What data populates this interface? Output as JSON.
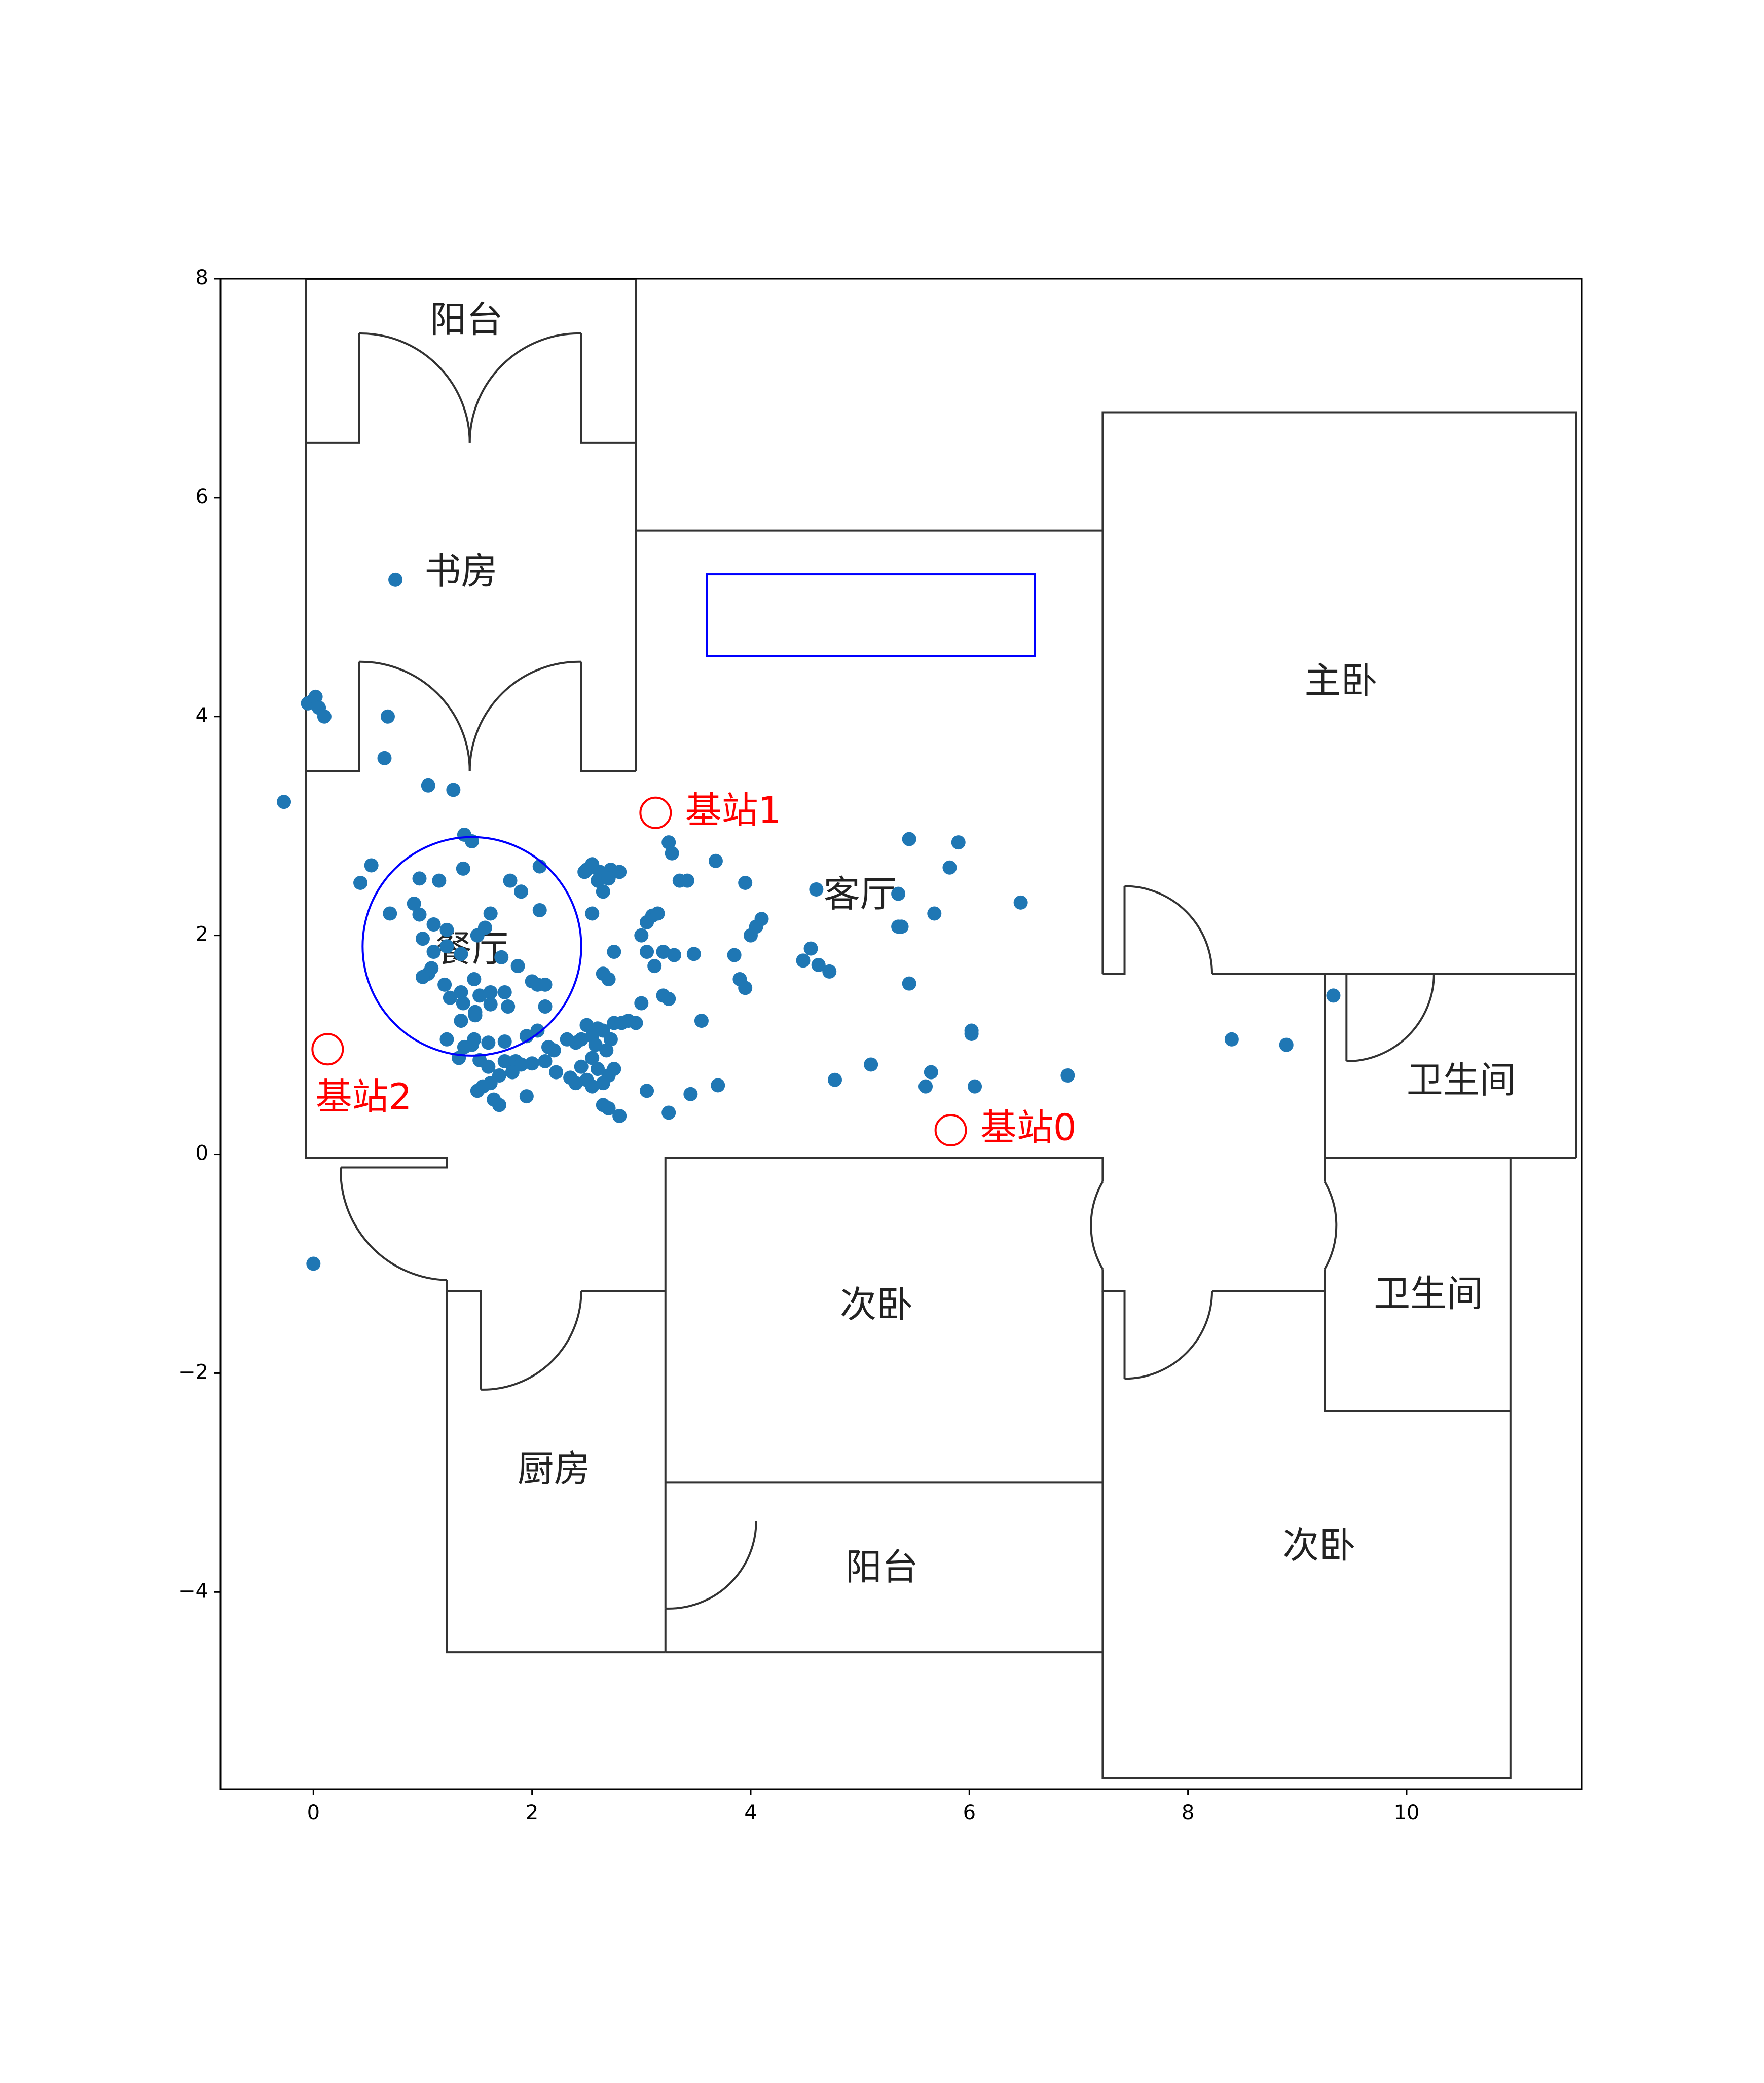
{
  "chart_data": {
    "type": "scatter",
    "title": "",
    "xlabel": "",
    "ylabel": "",
    "xlim": [
      -0.85,
      11.6
    ],
    "ylim": [
      -5.8,
      8.0
    ],
    "xticks": [
      0,
      2,
      4,
      6,
      8,
      10
    ],
    "yticks": [
      -4,
      -2,
      0,
      2,
      4,
      6,
      8
    ],
    "xtick_labels": [
      "0",
      "2",
      "4",
      "6",
      "8",
      "10"
    ],
    "ytick_labels": [
      "−4",
      "−2",
      "0",
      "2",
      "4",
      "6",
      "8"
    ],
    "grid": false,
    "colors": {
      "points": "#1f77b4",
      "walls": "#333333",
      "circle": "#0000ff",
      "stations": "#ff0000"
    },
    "rooms": [
      {
        "label": "阳台",
        "x": 1.4,
        "y": 7.6
      },
      {
        "label": "书房",
        "x": 1.35,
        "y": 5.3
      },
      {
        "label": "主卧",
        "x": 9.4,
        "y": 4.3
      },
      {
        "label": "客厅",
        "x": 5.0,
        "y": 2.35
      },
      {
        "label": "餐厅",
        "x": 1.45,
        "y": 1.85
      },
      {
        "label": "卫生间",
        "x": 10.5,
        "y": 0.65
      },
      {
        "label": "卫生间",
        "x": 10.2,
        "y": -1.3
      },
      {
        "label": "次卧",
        "x": 5.15,
        "y": -1.4
      },
      {
        "label": "厨房",
        "x": 2.2,
        "y": -2.9
      },
      {
        "label": "阳台",
        "x": 5.2,
        "y": -3.8
      },
      {
        "label": "次卧",
        "x": 9.2,
        "y": -3.6
      }
    ],
    "base_stations": [
      {
        "label": "基站0",
        "x": 5.83,
        "y": 0.22,
        "label_x": 6.1,
        "label_y": 0.22
      },
      {
        "label": "基站1",
        "x": 3.13,
        "y": 3.12,
        "label_x": 3.4,
        "label_y": 3.12
      },
      {
        "label": "基站2",
        "x": 0.13,
        "y": 0.96,
        "label_x": 0.02,
        "label_y": 0.5
      }
    ],
    "circle": {
      "x": 1.45,
      "y": 1.9,
      "r": 1.0
    },
    "rectangle": {
      "x1": 3.6,
      "y1": 4.55,
      "x2": 6.6,
      "y2": 5.3
    },
    "points": [
      [
        0.75,
        5.25
      ],
      [
        -0.05,
        4.12
      ],
      [
        0.0,
        4.15
      ],
      [
        0.02,
        4.18
      ],
      [
        0.05,
        4.08
      ],
      [
        0.1,
        4.0
      ],
      [
        0.68,
        4.0
      ],
      [
        0.65,
        3.62
      ],
      [
        1.05,
        3.37
      ],
      [
        1.28,
        3.33
      ],
      [
        -0.27,
        3.22
      ],
      [
        1.38,
        2.92
      ],
      [
        1.45,
        2.86
      ],
      [
        0.53,
        2.64
      ],
      [
        0.43,
        2.48
      ],
      [
        0.97,
        2.52
      ],
      [
        1.15,
        2.5
      ],
      [
        1.37,
        2.61
      ],
      [
        1.8,
        2.5
      ],
      [
        1.9,
        2.4
      ],
      [
        2.07,
        2.63
      ],
      [
        0.92,
        2.29
      ],
      [
        0.97,
        2.19
      ],
      [
        0.7,
        2.2
      ],
      [
        1.1,
        2.1
      ],
      [
        1.22,
        2.05
      ],
      [
        1.62,
        2.2
      ],
      [
        2.07,
        2.23
      ],
      [
        1.0,
        1.97
      ],
      [
        1.22,
        1.9
      ],
      [
        1.35,
        1.83
      ],
      [
        1.5,
        2.0
      ],
      [
        1.57,
        2.07
      ],
      [
        1.72,
        1.8
      ],
      [
        1.1,
        1.85
      ],
      [
        1.08,
        1.7
      ],
      [
        1.05,
        1.65
      ],
      [
        1.0,
        1.62
      ],
      [
        1.2,
        1.55
      ],
      [
        1.35,
        1.48
      ],
      [
        1.25,
        1.43
      ],
      [
        1.47,
        1.6
      ],
      [
        1.52,
        1.45
      ],
      [
        1.62,
        1.48
      ],
      [
        1.75,
        1.48
      ],
      [
        1.87,
        1.72
      ],
      [
        2.0,
        1.58
      ],
      [
        2.05,
        1.55
      ],
      [
        2.12,
        1.55
      ],
      [
        1.62,
        1.37
      ],
      [
        1.78,
        1.35
      ],
      [
        1.48,
        1.3
      ],
      [
        1.37,
        1.38
      ],
      [
        1.35,
        1.22
      ],
      [
        1.48,
        1.27
      ],
      [
        2.12,
        1.35
      ],
      [
        1.22,
        1.05
      ],
      [
        1.47,
        1.05
      ],
      [
        1.6,
        1.02
      ],
      [
        1.75,
        1.03
      ],
      [
        1.45,
        1.0
      ],
      [
        1.38,
        0.98
      ],
      [
        1.33,
        0.88
      ],
      [
        1.52,
        0.86
      ],
      [
        1.6,
        0.8
      ],
      [
        1.75,
        0.85
      ],
      [
        1.85,
        0.85
      ],
      [
        1.95,
        1.08
      ],
      [
        2.05,
        1.13
      ],
      [
        2.15,
        0.98
      ],
      [
        2.2,
        0.95
      ],
      [
        2.32,
        1.05
      ],
      [
        2.4,
        1.02
      ],
      [
        2.45,
        1.05
      ],
      [
        2.55,
        1.08
      ],
      [
        2.6,
        1.15
      ],
      [
        2.65,
        1.13
      ],
      [
        2.72,
        1.05
      ],
      [
        2.75,
        1.2
      ],
      [
        2.5,
        1.18
      ],
      [
        2.58,
        1.0
      ],
      [
        2.68,
        0.95
      ],
      [
        2.55,
        0.88
      ],
      [
        2.45,
        0.8
      ],
      [
        2.6,
        0.78
      ],
      [
        2.7,
        0.72
      ],
      [
        2.75,
        0.78
      ],
      [
        2.65,
        0.65
      ],
      [
        2.55,
        0.62
      ],
      [
        2.5,
        0.68
      ],
      [
        2.35,
        0.7
      ],
      [
        2.22,
        0.75
      ],
      [
        2.12,
        0.85
      ],
      [
        2.0,
        0.83
      ],
      [
        1.9,
        0.82
      ],
      [
        1.82,
        0.75
      ],
      [
        1.7,
        0.72
      ],
      [
        1.62,
        0.65
      ],
      [
        1.55,
        0.62
      ],
      [
        1.5,
        0.58
      ],
      [
        1.65,
        0.5
      ],
      [
        1.7,
        0.45
      ],
      [
        1.95,
        0.53
      ],
      [
        2.4,
        0.65
      ],
      [
        2.65,
        0.45
      ],
      [
        2.7,
        0.42
      ],
      [
        2.8,
        0.35
      ],
      [
        3.05,
        0.58
      ],
      [
        3.25,
        0.38
      ],
      [
        3.45,
        0.55
      ],
      [
        3.7,
        0.63
      ],
      [
        2.5,
        2.6
      ],
      [
        2.55,
        2.65
      ],
      [
        2.62,
        2.58
      ],
      [
        2.72,
        2.6
      ],
      [
        2.8,
        2.58
      ],
      [
        2.6,
        2.5
      ],
      [
        2.7,
        2.52
      ],
      [
        2.48,
        2.58
      ],
      [
        2.65,
        2.4
      ],
      [
        3.25,
        2.85
      ],
      [
        3.28,
        2.75
      ],
      [
        3.35,
        2.5
      ],
      [
        3.42,
        2.5
      ],
      [
        3.68,
        2.68
      ],
      [
        3.95,
        2.48
      ],
      [
        4.6,
        2.42
      ],
      [
        4.0,
        2.0
      ],
      [
        4.05,
        2.08
      ],
      [
        4.1,
        2.15
      ],
      [
        3.85,
        1.82
      ],
      [
        4.48,
        1.77
      ],
      [
        4.55,
        1.88
      ],
      [
        4.62,
        1.73
      ],
      [
        4.72,
        1.67
      ],
      [
        5.35,
        2.38
      ],
      [
        5.45,
        2.88
      ],
      [
        5.9,
        2.85
      ],
      [
        5.82,
        2.62
      ],
      [
        5.35,
        2.08
      ],
      [
        5.38,
        2.08
      ],
      [
        5.68,
        2.2
      ],
      [
        6.47,
        2.3
      ],
      [
        5.45,
        1.56
      ],
      [
        3.9,
        1.6
      ],
      [
        3.95,
        1.52
      ],
      [
        3.55,
        1.22
      ],
      [
        2.55,
        2.2
      ],
      [
        2.75,
        1.85
      ],
      [
        2.65,
        1.65
      ],
      [
        2.7,
        1.6
      ],
      [
        3.05,
        2.12
      ],
      [
        3.1,
        2.18
      ],
      [
        3.15,
        2.2
      ],
      [
        3.0,
        2.0
      ],
      [
        3.05,
        1.85
      ],
      [
        3.2,
        1.85
      ],
      [
        3.3,
        1.82
      ],
      [
        3.48,
        1.83
      ],
      [
        3.12,
        1.72
      ],
      [
        3.2,
        1.45
      ],
      [
        3.0,
        1.38
      ],
      [
        3.25,
        1.42
      ],
      [
        2.95,
        1.2
      ],
      [
        2.88,
        1.22
      ],
      [
        2.82,
        1.2
      ],
      [
        6.02,
        1.13
      ],
      [
        6.02,
        1.1
      ],
      [
        5.65,
        0.75
      ],
      [
        5.6,
        0.62
      ],
      [
        5.1,
        0.82
      ],
      [
        4.77,
        0.68
      ],
      [
        6.05,
        0.62
      ],
      [
        6.9,
        0.72
      ],
      [
        8.4,
        1.05
      ],
      [
        8.9,
        1.0
      ],
      [
        9.33,
        1.45
      ],
      [
        0.0,
        -1.0
      ]
    ]
  }
}
